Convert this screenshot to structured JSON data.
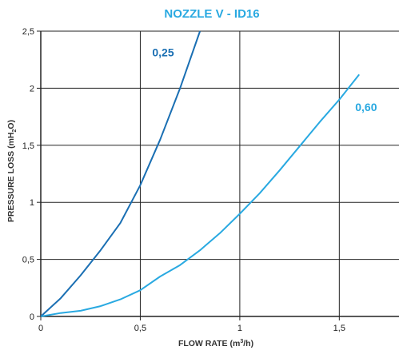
{
  "chart_data": {
    "type": "line",
    "title": "NOZZLE V - ID16",
    "xlabel": {
      "prefix": "FLOW RATE (m",
      "sup": "3",
      "suffix": "/h)"
    },
    "ylabel": {
      "prefix": "PRESSURE LOSS (mH",
      "sub": "2",
      "suffix": "O)"
    },
    "xlim": [
      0,
      1.8
    ],
    "ylim": [
      0,
      2.5
    ],
    "x_ticks": [
      {
        "value": 0,
        "label": "0"
      },
      {
        "value": 0.5,
        "label": "0,5"
      },
      {
        "value": 1,
        "label": "1"
      },
      {
        "value": 1.5,
        "label": "1,5"
      }
    ],
    "y_ticks": [
      {
        "value": 0,
        "label": "0"
      },
      {
        "value": 0.5,
        "label": "0,5"
      },
      {
        "value": 1,
        "label": "1"
      },
      {
        "value": 1.5,
        "label": "1,5"
      },
      {
        "value": 2,
        "label": "2"
      },
      {
        "value": 2.5,
        "label": "2,5"
      }
    ],
    "grid": true,
    "colors": {
      "title": "#29a9e1",
      "axis": "#222222",
      "grid": "#222222"
    },
    "series": [
      {
        "name": "0,25",
        "color": "#1a6fb3",
        "label_anchor": {
          "x": 0.56,
          "y": 2.28
        },
        "x": [
          0,
          0.1,
          0.2,
          0.3,
          0.4,
          0.5,
          0.6,
          0.7,
          0.8
        ],
        "y": [
          0,
          0.16,
          0.36,
          0.58,
          0.82,
          1.15,
          1.55,
          2.0,
          2.5
        ]
      },
      {
        "name": "0,60",
        "color": "#29a9e1",
        "label_anchor": {
          "x": 1.58,
          "y": 1.8
        },
        "x": [
          0,
          0.1,
          0.2,
          0.3,
          0.4,
          0.5,
          0.6,
          0.7,
          0.8,
          0.9,
          1.0,
          1.1,
          1.2,
          1.3,
          1.4,
          1.5,
          1.6
        ],
        "y": [
          0,
          0.03,
          0.05,
          0.09,
          0.15,
          0.23,
          0.35,
          0.45,
          0.58,
          0.73,
          0.9,
          1.08,
          1.28,
          1.49,
          1.7,
          1.9,
          2.12
        ]
      }
    ]
  }
}
